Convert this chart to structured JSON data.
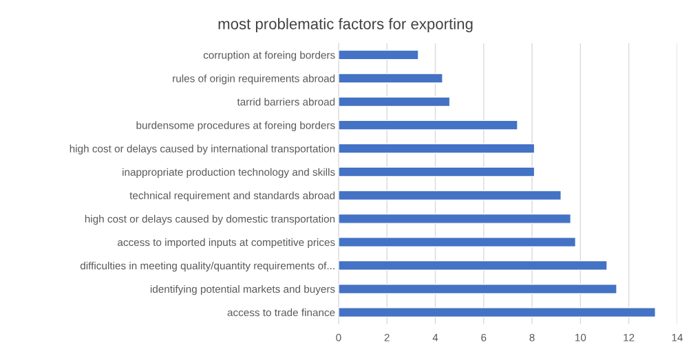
{
  "chart_data": {
    "type": "bar",
    "orientation": "horizontal",
    "title": "most problematic factors for exporting",
    "categories": [
      "corruption at foreing borders",
      "rules of origin requirements abroad",
      "tarrid barriers abroad",
      "burdensome procedures at foreing borders",
      "high cost or delays caused by international transportation",
      "inappropriate production technology and skills",
      "technical requirement and standards abroad",
      "high cost or delays caused by domestic transportation",
      "access to imported inputs at competitive prices",
      "difficulties in meeting quality/quantity requirements of...",
      "identifying potential markets and buyers",
      "access to trade finance"
    ],
    "values": [
      3.3,
      4.3,
      4.6,
      7.4,
      8.1,
      8.1,
      9.2,
      9.6,
      9.8,
      11.1,
      11.5,
      13.1
    ],
    "color": "#4472c4",
    "xlim": [
      0,
      14
    ],
    "xticks": [
      0,
      2,
      4,
      6,
      8,
      10,
      12,
      14
    ],
    "grid": "x",
    "legend": false
  }
}
